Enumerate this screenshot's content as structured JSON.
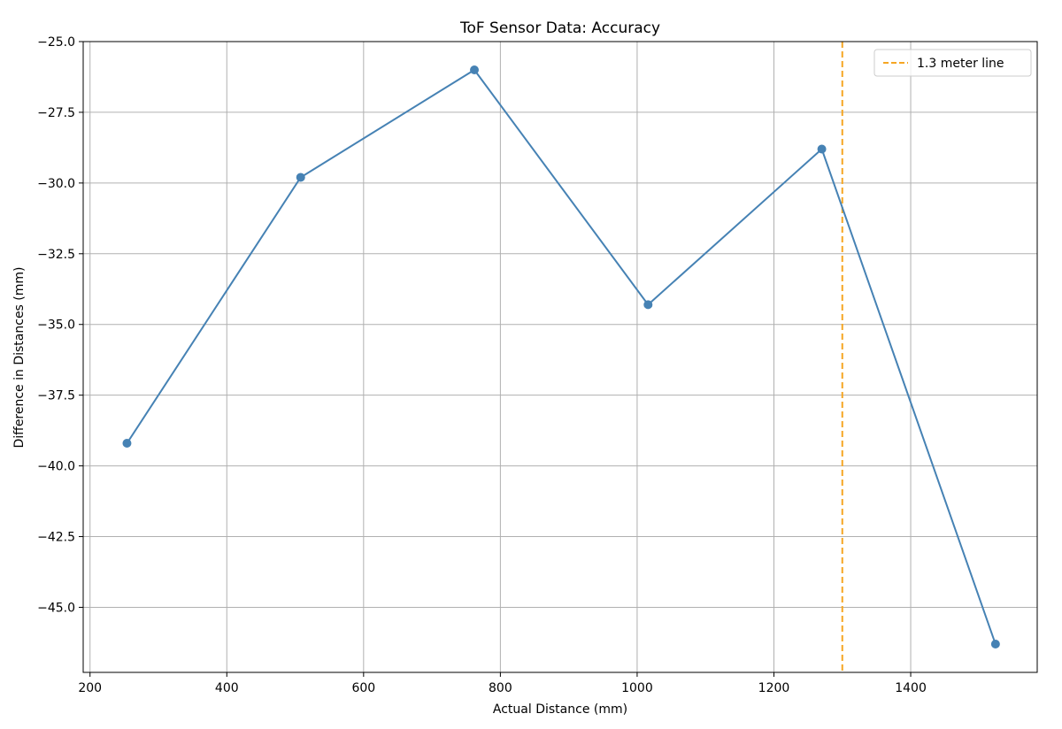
{
  "chart_data": {
    "type": "line",
    "title": "ToF Sensor Data: Accuracy",
    "xlabel": "Actual Distance (mm)",
    "ylabel": "Difference in Distances (mm)",
    "xlim": [
      190,
      1585
    ],
    "ylim": [
      -47.3,
      -25.0
    ],
    "xticks": [
      200,
      400,
      600,
      800,
      1000,
      1200,
      1400
    ],
    "yticks": [
      -25.0,
      -27.5,
      -30.0,
      -32.5,
      -35.0,
      -37.5,
      -40.0,
      -42.5,
      -45.0
    ],
    "xtick_labels": [
      "200",
      "400",
      "600",
      "800",
      "1000",
      "1200",
      "1400"
    ],
    "ytick_labels": [
      "−25.0",
      "−27.5",
      "−30.0",
      "−32.5",
      "−35.0",
      "−37.5",
      "−40.0",
      "−42.5",
      "−45.0"
    ],
    "grid": true,
    "legend_position": "top-right",
    "series": [
      {
        "name": "",
        "color": "#4682b4",
        "marker": "circle",
        "x": [
          254,
          508,
          762,
          1016,
          1270,
          1524
        ],
        "y": [
          -39.2,
          -29.8,
          -26.0,
          -34.3,
          -28.8,
          -46.3
        ]
      }
    ],
    "reference_lines": [
      {
        "name": "1.3 meter line",
        "orientation": "vertical",
        "x": 1300,
        "color": "#f5a623",
        "style": "dashed"
      }
    ]
  }
}
